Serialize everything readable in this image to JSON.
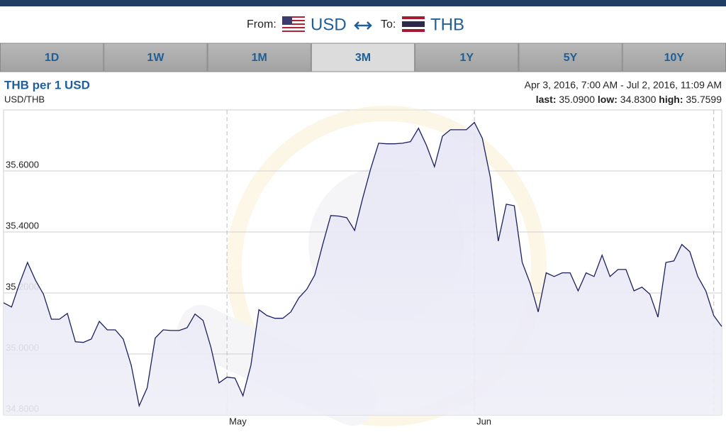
{
  "header": {
    "from_label": "From:",
    "from_currency": "USD",
    "to_label": "To:",
    "to_currency": "THB"
  },
  "tabs": [
    "1D",
    "1W",
    "1M",
    "3M",
    "1Y",
    "5Y",
    "10Y"
  ],
  "active_tab": 3,
  "chart_data": {
    "type": "line",
    "title": "THB per 1 USD",
    "subtitle": "USD/THB",
    "range": "Apr 3, 2016, 7:00 AM - Jul 2, 2016, 11:09 AM",
    "stats": [
      {
        "label": "last:",
        "value": "35.0900"
      },
      {
        "label": "low:",
        "value": "34.8300"
      },
      {
        "label": "high:",
        "value": "35.7599"
      }
    ],
    "x": [
      "2016-04-03",
      "2016-04-04",
      "2016-04-05",
      "2016-04-06",
      "2016-04-07",
      "2016-04-08",
      "2016-04-09",
      "2016-04-10",
      "2016-04-11",
      "2016-04-12",
      "2016-04-13",
      "2016-04-14",
      "2016-04-15",
      "2016-04-16",
      "2016-04-17",
      "2016-04-18",
      "2016-04-19",
      "2016-04-20",
      "2016-04-21",
      "2016-04-22",
      "2016-04-23",
      "2016-04-24",
      "2016-04-25",
      "2016-04-26",
      "2016-04-27",
      "2016-04-28",
      "2016-04-29",
      "2016-04-30",
      "2016-05-01",
      "2016-05-02",
      "2016-05-03",
      "2016-05-04",
      "2016-05-05",
      "2016-05-06",
      "2016-05-07",
      "2016-05-08",
      "2016-05-09",
      "2016-05-10",
      "2016-05-11",
      "2016-05-12",
      "2016-05-13",
      "2016-05-14",
      "2016-05-15",
      "2016-05-16",
      "2016-05-17",
      "2016-05-18",
      "2016-05-19",
      "2016-05-20",
      "2016-05-21",
      "2016-05-22",
      "2016-05-23",
      "2016-05-24",
      "2016-05-25",
      "2016-05-26",
      "2016-05-27",
      "2016-05-28",
      "2016-05-29",
      "2016-05-30",
      "2016-05-31",
      "2016-06-01",
      "2016-06-02",
      "2016-06-03",
      "2016-06-04",
      "2016-06-05",
      "2016-06-06",
      "2016-06-07",
      "2016-06-08",
      "2016-06-09",
      "2016-06-10",
      "2016-06-11",
      "2016-06-12",
      "2016-06-13",
      "2016-06-14",
      "2016-06-15",
      "2016-06-16",
      "2016-06-17",
      "2016-06-18",
      "2016-06-19",
      "2016-06-20",
      "2016-06-21",
      "2016-06-22",
      "2016-06-23",
      "2016-06-24",
      "2016-06-25",
      "2016-06-26",
      "2016-06-27",
      "2016-06-28",
      "2016-06-29",
      "2016-06-30",
      "2016-07-01",
      "2016-07-02"
    ],
    "values": [
      35.168,
      35.154,
      35.231,
      35.3,
      35.242,
      35.196,
      35.114,
      35.114,
      35.133,
      35.04,
      35.038,
      35.049,
      35.107,
      35.079,
      35.079,
      35.049,
      34.963,
      34.83,
      34.889,
      35.052,
      35.079,
      35.077,
      35.077,
      35.086,
      35.131,
      35.11,
      35.021,
      34.905,
      34.924,
      34.921,
      34.863,
      34.963,
      35.145,
      35.126,
      35.117,
      35.117,
      35.138,
      35.184,
      35.212,
      35.259,
      35.359,
      35.454,
      35.452,
      35.447,
      35.405,
      35.51,
      35.607,
      35.691,
      35.689,
      35.689,
      35.691,
      35.696,
      35.74,
      35.684,
      35.614,
      35.714,
      35.735,
      35.735,
      35.735,
      35.759,
      35.707,
      35.579,
      35.37,
      35.491,
      35.486,
      35.3,
      35.231,
      35.138,
      35.266,
      35.254,
      35.266,
      35.266,
      35.207,
      35.266,
      35.254,
      35.324,
      35.254,
      35.277,
      35.277,
      35.207,
      35.219,
      35.196,
      35.121,
      35.3,
      35.305,
      35.359,
      35.335,
      35.254,
      35.207,
      35.126,
      35.09
    ],
    "color": "#1b1f5e",
    "ylim": [
      34.8,
      35.8
    ],
    "yticks": [
      {
        "value": 34.8,
        "label": "34.8000"
      },
      {
        "value": 35.0,
        "label": "35.0000"
      },
      {
        "value": 35.2,
        "label": "35.2000"
      },
      {
        "value": 35.4,
        "label": "35.4000"
      },
      {
        "value": 35.6,
        "label": "35.6000"
      }
    ],
    "xlim": [
      "2016-04-03",
      "2016-07-02"
    ],
    "xticks": [
      {
        "value": "2016-05-01",
        "label": "May"
      },
      {
        "value": "2016-06-01",
        "label": "Jun"
      },
      {
        "value": "2016-07-01",
        "label": null
      }
    ],
    "grid": true
  }
}
